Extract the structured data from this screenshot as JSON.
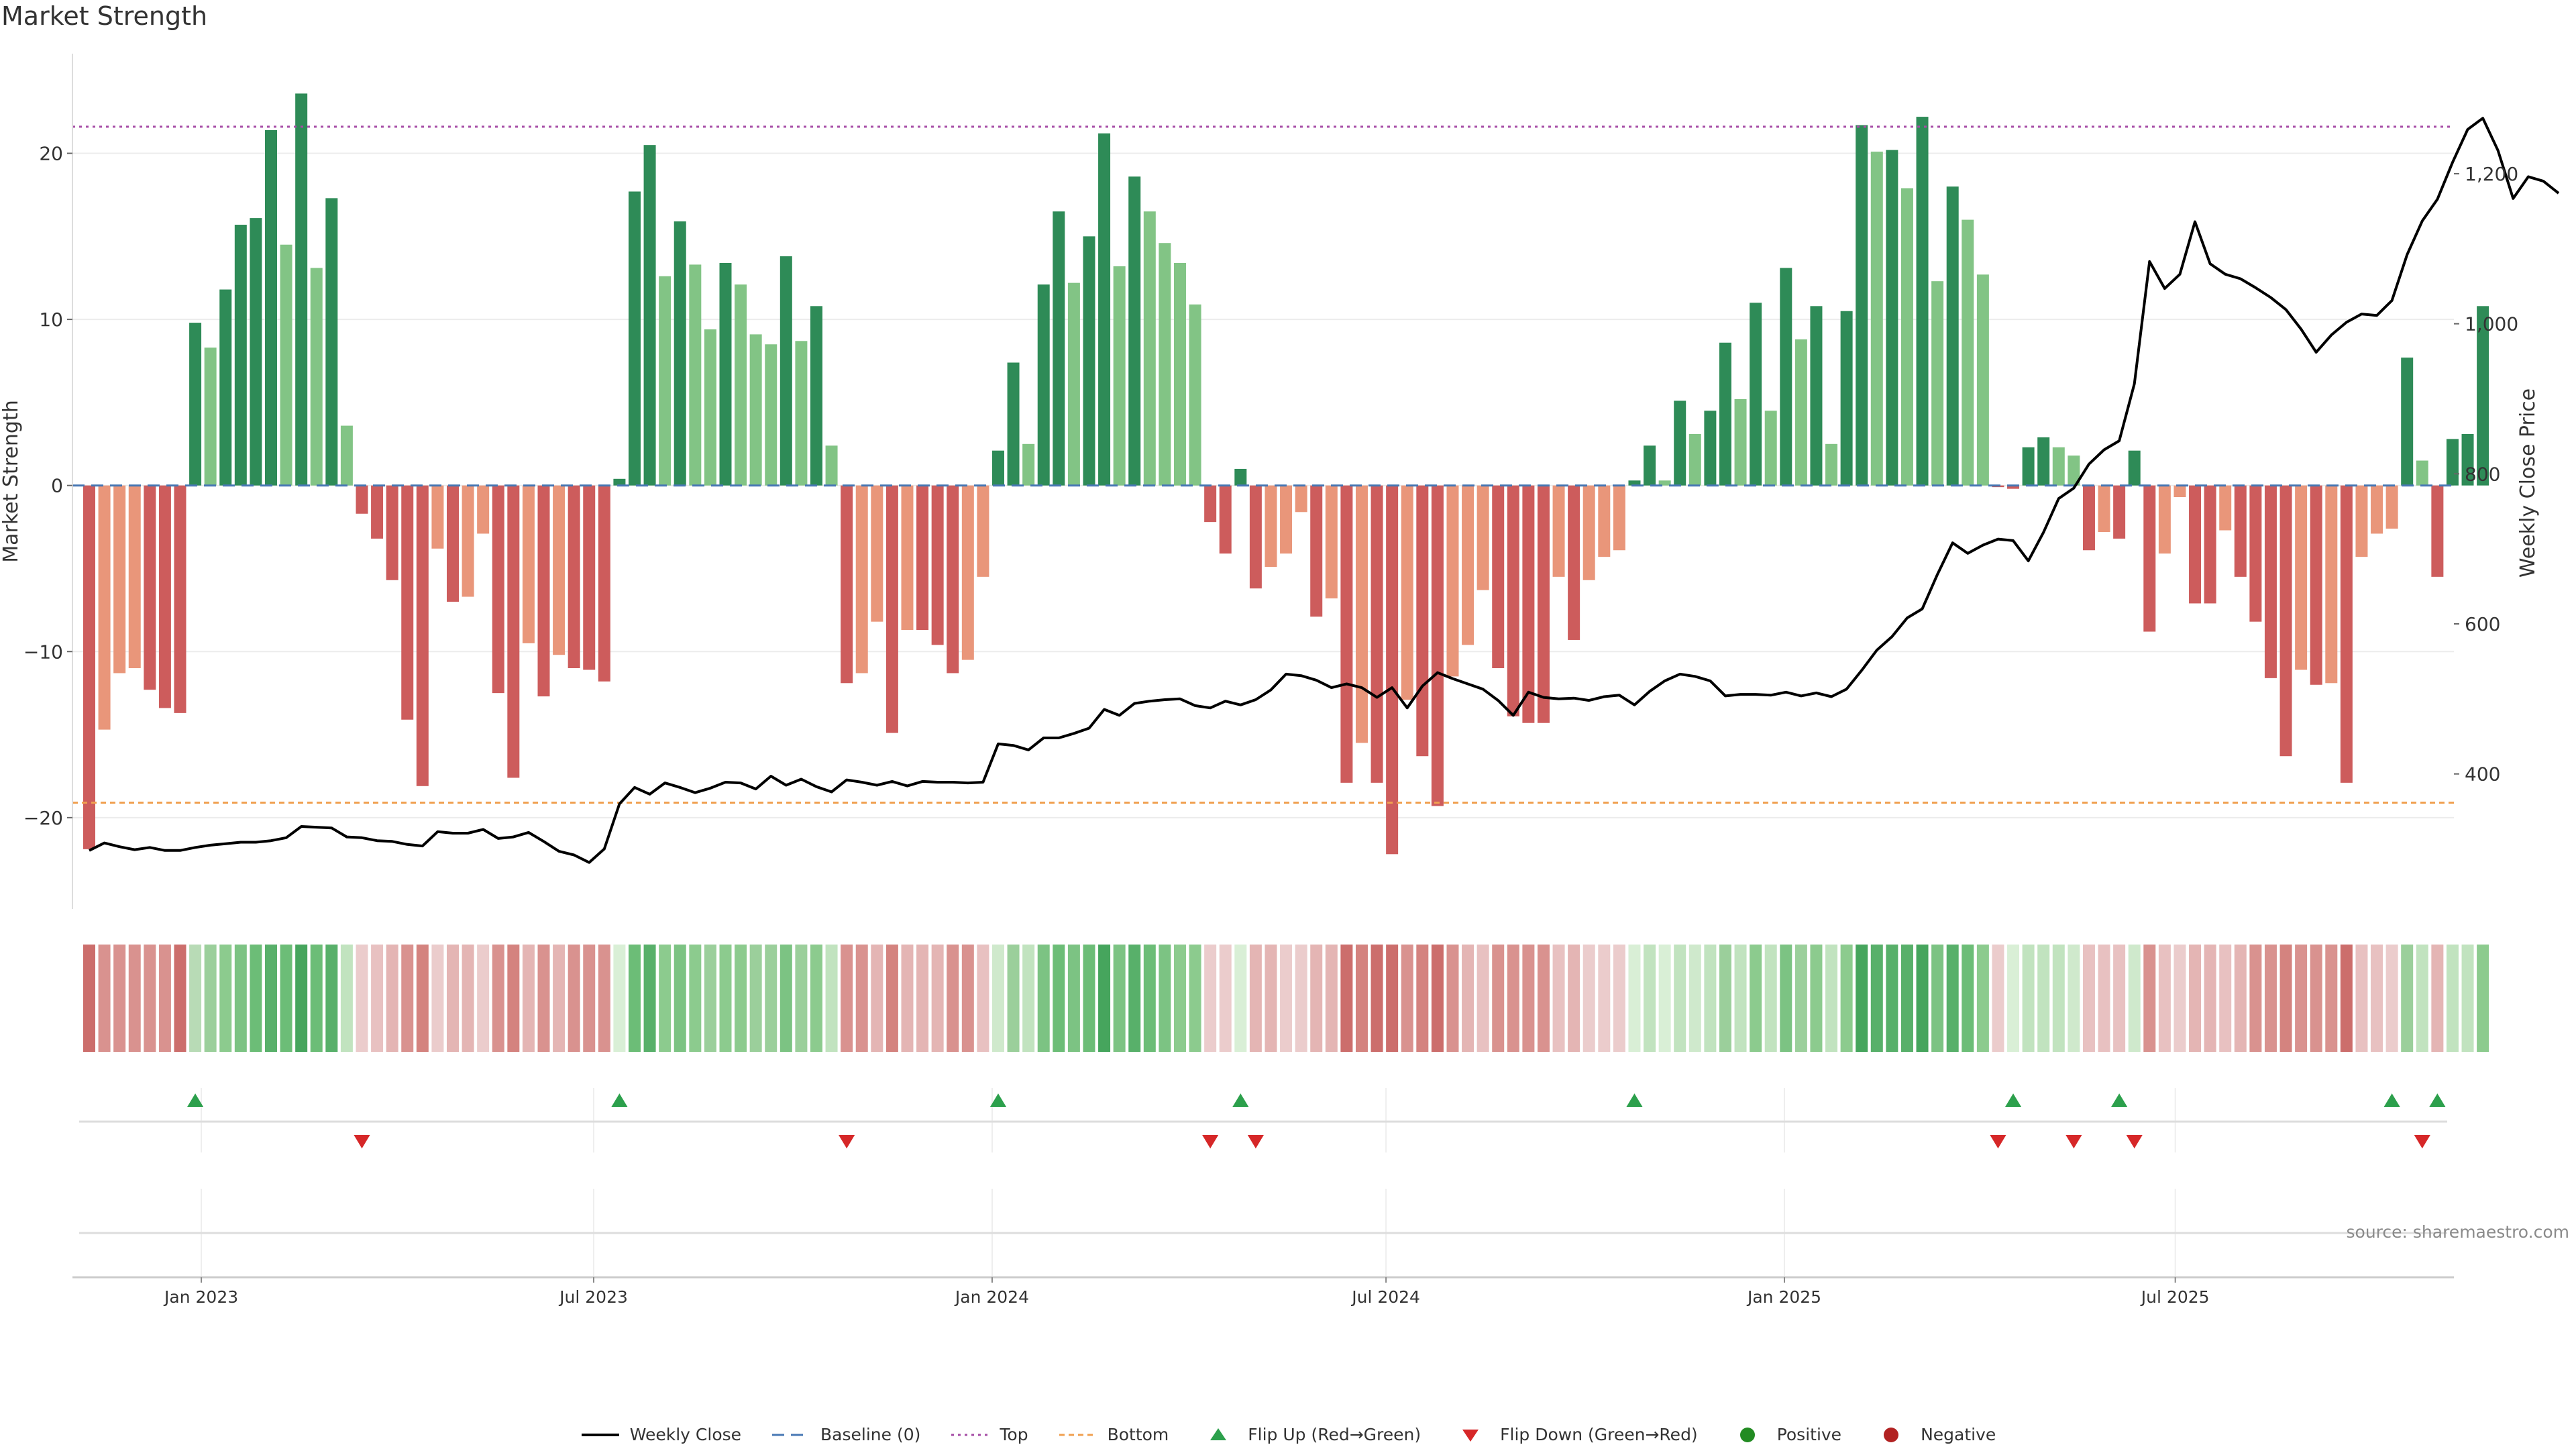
{
  "chart_data": {
    "type": "bar",
    "title": "Market Strength",
    "ylabel": "Market Strength",
    "y2label": "Weekly Close Price",
    "ylim": [
      -25.5,
      26
    ],
    "y2lim": [
      220,
      1360
    ],
    "yticks": [
      -20,
      -10,
      0,
      10,
      20
    ],
    "y2ticks": [
      400,
      600,
      800,
      1000,
      1200
    ],
    "y2tick_labels": [
      "400",
      "600",
      "800",
      "1,000",
      "1,200"
    ],
    "top_threshold": 21.6,
    "bottom_threshold": -19.1,
    "x_start": "2022-11-06",
    "x_end": "2025-11-02",
    "xticks": [
      {
        "label": "Jan 2023",
        "week": 7.4
      },
      {
        "label": "Jul 2023",
        "week": 33.3
      },
      {
        "label": "Jan 2024",
        "week": 59.6
      },
      {
        "label": "Jul 2024",
        "week": 85.6
      },
      {
        "label": "Jan 2025",
        "week": 111.9
      },
      {
        "label": "Jul 2025",
        "week": 137.7
      }
    ],
    "strength": [
      -21.9,
      -14.7,
      -11.3,
      -11,
      -12.3,
      -13.4,
      -13.7,
      9.8,
      8.3,
      11.8,
      15.7,
      16.1,
      21.4,
      14.5,
      23.6,
      13.1,
      17.3,
      3.6,
      -1.7,
      -3.2,
      -5.7,
      -14.1,
      -18.1,
      -3.8,
      -7,
      -6.7,
      -2.9,
      -12.5,
      -17.6,
      -9.5,
      -12.7,
      -10.2,
      -11,
      -11.1,
      -11.8,
      0.4,
      17.7,
      20.5,
      12.6,
      15.9,
      13.3,
      9.4,
      13.4,
      12.1,
      9.1,
      8.5,
      13.8,
      8.7,
      10.8,
      2.4,
      -11.9,
      -11.3,
      -8.2,
      -14.9,
      -8.7,
      -8.7,
      -9.6,
      -11.3,
      -10.5,
      -5.5,
      2.1,
      7.4,
      2.5,
      12.1,
      16.5,
      12.2,
      15,
      21.2,
      13.2,
      18.6,
      16.5,
      14.6,
      13.4,
      10.9,
      -2.2,
      -4.1,
      1,
      -6.2,
      -4.9,
      -4.1,
      -1.6,
      -7.9,
      -6.8,
      -17.9,
      -15.5,
      -17.9,
      -22.2,
      -12.9,
      -16.3,
      -19.3,
      -11.5,
      -9.6,
      -6.3,
      -11,
      -13.9,
      -14.3,
      -14.3,
      -5.5,
      -9.3,
      -5.7,
      -4.3,
      -3.9,
      0.3,
      2.4,
      0.3,
      5.1,
      3.1,
      4.5,
      8.6,
      5.2,
      11,
      4.5,
      13.1,
      8.8,
      10.8,
      2.5,
      10.5,
      21.7,
      20.1,
      20.2,
      17.9,
      22.2,
      12.3,
      18,
      16,
      12.7,
      -0.1,
      -0.2,
      2.3,
      2.9,
      2.3,
      1.8,
      -3.9,
      -2.8,
      -3.2,
      2.1,
      -8.8,
      -4.1,
      -0.7,
      -7.1,
      -7.1,
      -2.7,
      -5.5,
      -8.2,
      -11.6,
      -16.3,
      -11.1,
      -12,
      -11.9,
      -17.9,
      -4.3,
      -2.9,
      -2.6,
      7.7,
      1.5,
      -5.5,
      2.8,
      3.1,
      10.8
    ],
    "weekly_close": [
      298,
      308,
      303,
      299,
      302,
      298,
      298,
      302,
      305,
      307,
      309,
      309,
      311,
      315,
      330,
      329,
      328,
      316,
      315,
      311,
      310,
      306,
      304,
      323,
      321,
      321,
      326,
      314,
      316,
      322,
      310,
      297,
      292,
      282,
      300,
      360,
      382,
      373,
      388,
      382,
      375,
      381,
      389,
      388,
      380,
      397,
      385,
      393,
      383,
      376,
      392,
      389,
      385,
      390,
      384,
      390,
      389,
      389,
      388,
      389,
      440,
      438,
      432,
      448,
      448,
      454,
      461,
      486,
      478,
      494,
      497,
      499,
      500,
      491,
      488,
      497,
      492,
      499,
      512,
      533,
      531,
      525,
      515,
      520,
      515,
      502,
      515,
      488,
      517,
      535,
      527,
      520,
      513,
      498,
      478,
      509,
      502,
      500,
      501,
      498,
      503,
      505,
      492,
      510,
      524,
      533,
      530,
      524,
      504,
      506,
      506,
      505,
      509,
      504,
      508,
      503,
      513,
      538,
      565,
      583,
      608,
      620,
      666,
      708,
      694,
      705,
      713,
      711,
      684,
      722,
      767,
      781,
      813,
      832,
      844,
      920,
      1083,
      1047,
      1066,
      1136,
      1080,
      1066,
      1060,
      1048,
      1035,
      1019,
      993,
      962,
      985,
      1002,
      1013,
      1011,
      1031,
      1092,
      1137,
      1166,
      1215,
      1259,
      1274,
      1231,
      1167,
      1196,
      1190,
      1174
    ],
    "shade_colors": [
      "#cc6e6c",
      "#d9928f",
      "#d9928f",
      "#d9928f",
      "#d9928f",
      "#d9928f",
      "#cc6e6c",
      "#b8dbb6",
      "#9bcf9b",
      "#8ccb8e",
      "#7cc383",
      "#6cbd77",
      "#58b06a",
      "#6cbd77",
      "#46a55d",
      "#6cbd77",
      "#58b06a",
      "#c1e3bf",
      "#ebcccc",
      "#e8c1c1",
      "#e4b5b4",
      "#d9928f",
      "#d4837f",
      "#ebcccc",
      "#e4b5b4",
      "#e4b5b4",
      "#ebcccc",
      "#d9928f",
      "#d4837f",
      "#e4b5b4",
      "#d9928f",
      "#e4b5b4",
      "#d9928f",
      "#d9928f",
      "#d9928f",
      "#d9efd6",
      "#6cbd77",
      "#58b06a",
      "#8ccb8e",
      "#7cc383",
      "#8ccb8e",
      "#9bcf9b",
      "#8ccb8e",
      "#8ccb8e",
      "#9bcf9b",
      "#9bcf9b",
      "#7cc383",
      "#9bcf9b",
      "#8ccb8e",
      "#c1e3bf",
      "#d9928f",
      "#d9928f",
      "#e4b5b4",
      "#d4837f",
      "#e4b5b4",
      "#e4b5b4",
      "#e4b5b4",
      "#d9928f",
      "#d9928f",
      "#e8c1c1",
      "#cfe9cc",
      "#9bcf9b",
      "#c1e3bf",
      "#7cc383",
      "#6cbd77",
      "#7cc383",
      "#6cbd77",
      "#46a55d",
      "#7cc383",
      "#58b06a",
      "#6cbd77",
      "#7cc383",
      "#8ccb8e",
      "#8ccb8e",
      "#ebcccc",
      "#ebcccc",
      "#d9efd6",
      "#e4b5b4",
      "#e4b5b4",
      "#ebcccc",
      "#ebcccc",
      "#e4b5b4",
      "#e4b5b4",
      "#cc6e6c",
      "#d4837f",
      "#cc6e6c",
      "#cc6e6c",
      "#d9928f",
      "#d4837f",
      "#cc6e6c",
      "#d9928f",
      "#e4b5b4",
      "#e8c1c1",
      "#d9928f",
      "#d9928f",
      "#d9928f",
      "#d9928f",
      "#e8c1c1",
      "#e4b5b4",
      "#ebcccc",
      "#ebcccc",
      "#ebcccc",
      "#d9efd6",
      "#c1e3bf",
      "#d9efd6",
      "#c1e3bf",
      "#cfe9cc",
      "#c1e3bf",
      "#9bcf9b",
      "#c1e3bf",
      "#8ccb8e",
      "#c1e3bf",
      "#7cc383",
      "#9bcf9b",
      "#8ccb8e",
      "#c1e3bf",
      "#8ccb8e",
      "#46a55d",
      "#58b06a",
      "#58b06a",
      "#58b06a",
      "#46a55d",
      "#7cc383",
      "#58b06a",
      "#6cbd77",
      "#8ccb8e",
      "#ebcccc",
      "#d9efd6",
      "#c1e3bf",
      "#c1e3bf",
      "#c1e3bf",
      "#cfe9cc",
      "#e8c1c1",
      "#e8c1c1",
      "#e8c1c1",
      "#cfe9cc",
      "#d9928f",
      "#e8c1c1",
      "#ebcccc",
      "#e4b5b4",
      "#e4b5b4",
      "#e8c1c1",
      "#e4b5b4",
      "#d9928f",
      "#d9928f",
      "#d4837f",
      "#d9928f",
      "#d9928f",
      "#d9928f",
      "#cc6e6c",
      "#e8c1c1",
      "#e8c1c1",
      "#ebcccc",
      "#9bcf9b",
      "#c1e3bf",
      "#e4b5b4",
      "#c1e3bf",
      "#c1e3bf",
      "#8ccb8e"
    ],
    "flip_up_weeks": [
      7,
      35,
      60,
      76,
      102,
      127,
      134,
      152,
      155
    ],
    "flip_down_weeks": [
      18,
      50,
      74,
      77,
      126,
      131,
      135,
      154
    ],
    "colors": {
      "pos_strong": "#2e8b57",
      "pos_light": "#82c485",
      "neg_strong": "#cd5c5c",
      "neg_light": "#e9967a",
      "close_line": "#000000",
      "baseline": "#4878b4",
      "top_line": "#a64ca6",
      "bottom_line": "#f0a050",
      "flip_up": "#2ca04c",
      "flip_down": "#d62728",
      "positive": "#228b22",
      "negative": "#b22222"
    },
    "legend": [
      {
        "label": "Weekly Close",
        "key": "close"
      },
      {
        "label": "Baseline (0)",
        "key": "baseline"
      },
      {
        "label": "Top",
        "key": "top"
      },
      {
        "label": "Bottom",
        "key": "bottom"
      },
      {
        "label": "Flip Up (Red→Green)",
        "key": "flip_up"
      },
      {
        "label": "Flip Down (Green→Red)",
        "key": "flip_down"
      },
      {
        "label": "Positive",
        "key": "positive"
      },
      {
        "label": "Negative",
        "key": "negative"
      }
    ],
    "source": "source: sharemaestro.com"
  }
}
